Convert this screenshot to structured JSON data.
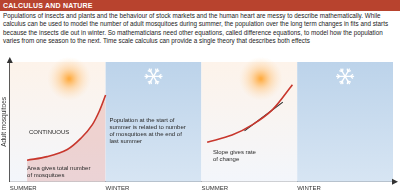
{
  "header": {
    "title": "CALCULUS AND NATURE"
  },
  "paragraph": "Populations of insects and plants and the behaviour of stock markets and the human heart are messy to describe mathematically. While calculus can be used to model the number of adult mosquitoes during summer, the population over the long term changes in fits and starts because the insects die out in winter. So mathematicians need other equations, called difference equations, to model how the population varies from one season to the next. Time scale calculus can provide a single theory that describes both effects",
  "chart_data": {
    "type": "line",
    "y_label": "Adult mosquitoes",
    "xlim": [
      0,
      4
    ],
    "xticks": [
      {
        "value": 0,
        "label": "SUMMER"
      },
      {
        "value": 1,
        "label": "WINTER"
      },
      {
        "value": 2,
        "label": "SUMMER"
      },
      {
        "value": 3,
        "label": "WINTER"
      }
    ],
    "ylim": [
      0,
      10
    ],
    "tick_labels": "x",
    "grid": false,
    "marker": "none",
    "series": [
      {
        "color": "#c8372d",
        "x": [
          0.18,
          0.39,
          0.6,
          0.75,
          0.86,
          0.94,
          1.0
        ],
        "values": [
          1.8,
          2.1,
          2.7,
          3.7,
          4.75,
          6.0,
          7.25
        ]
      },
      {
        "color": "#c8372d",
        "x": [
          2.06,
          2.32,
          2.53,
          2.74,
          2.95
        ],
        "values": [
          3.3,
          3.9,
          4.75,
          6.0,
          8.1
        ]
      },
      {
        "color": "#333333",
        "line_style": "solid",
        "x": [
          2.45,
          2.85
        ],
        "values": [
          4.25,
          6.65
        ]
      }
    ],
    "annotations": [
      [
        "CONTINUOUS"
      ],
      [
        "Area gives total number",
        "of mosquitoes"
      ],
      [
        "Population at the start of",
        "summer is related to number",
        "of mosquitoes at the end of",
        "last summer"
      ],
      [
        "Slope gives rate",
        "of change"
      ]
    ]
  }
}
